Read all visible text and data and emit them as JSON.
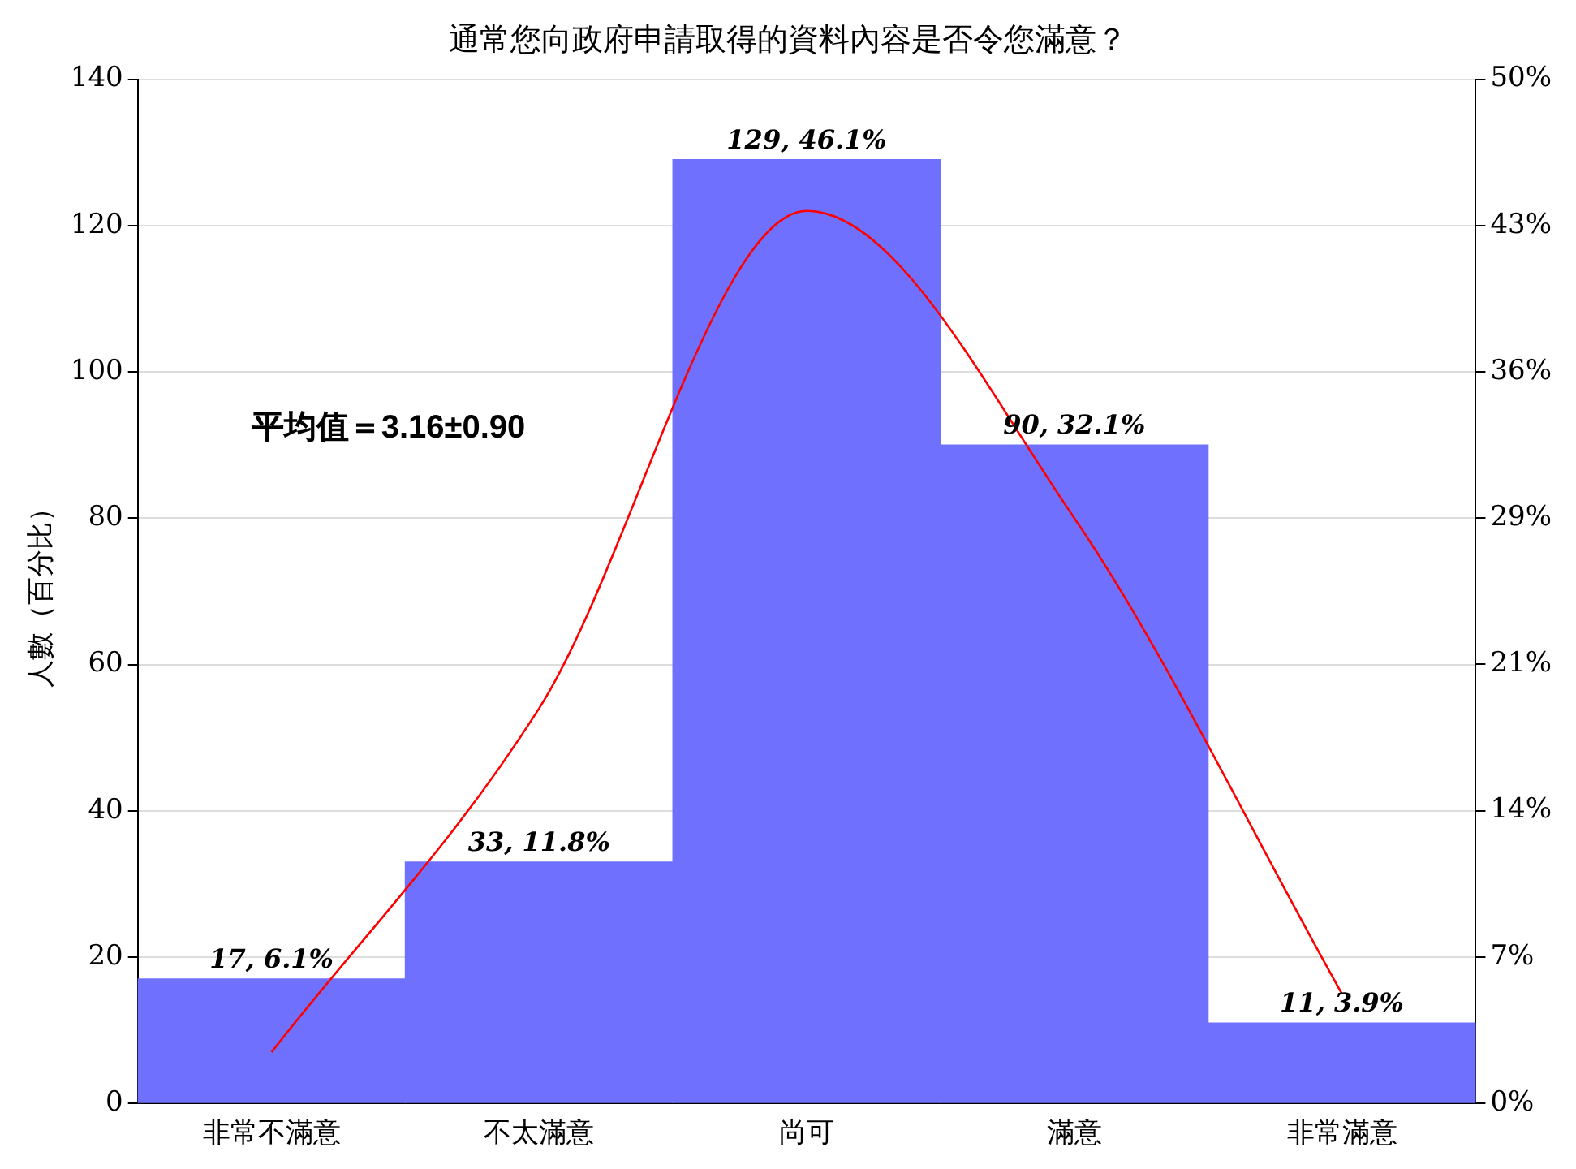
{
  "chart_data": {
    "type": "bar",
    "title": "通常您向政府申請取得的資料內容是否令您滿意？",
    "ylabel": "人數（百分比）",
    "categories": [
      "非常不滿意",
      "不太滿意",
      "尚可",
      "滿意",
      "非常滿意"
    ],
    "series": [
      {
        "color": "#7070ff",
        "values": [
          17,
          33,
          129,
          90,
          11
        ],
        "value_labels": [
          "17, 6.1%",
          "33, 11.8%",
          "129, 46.1%",
          "90, 32.1%",
          "11, 3.9%"
        ]
      },
      {
        "type": "line",
        "color": "#ff0000",
        "values": [
          7,
          54,
          122,
          80,
          15
        ]
      }
    ],
    "ylim": [
      0,
      140
    ],
    "yticks": [
      0,
      20,
      40,
      60,
      80,
      100,
      120,
      140
    ],
    "y2lim": [
      0,
      50
    ],
    "y2ticks": [
      {
        "value": 0,
        "label": "0%"
      },
      {
        "value": 7.14,
        "label": "7%"
      },
      {
        "value": 14.29,
        "label": "14%"
      },
      {
        "value": 21.43,
        "label": "21%"
      },
      {
        "value": 28.57,
        "label": "29%"
      },
      {
        "value": 35.71,
        "label": "36%"
      },
      {
        "value": 42.86,
        "label": "43%"
      },
      {
        "value": 50,
        "label": "50%"
      }
    ],
    "grid": "y",
    "legend": false,
    "marker": "none",
    "line_style": "solid",
    "annotations": [
      "平均值＝3.16±0.90"
    ]
  }
}
